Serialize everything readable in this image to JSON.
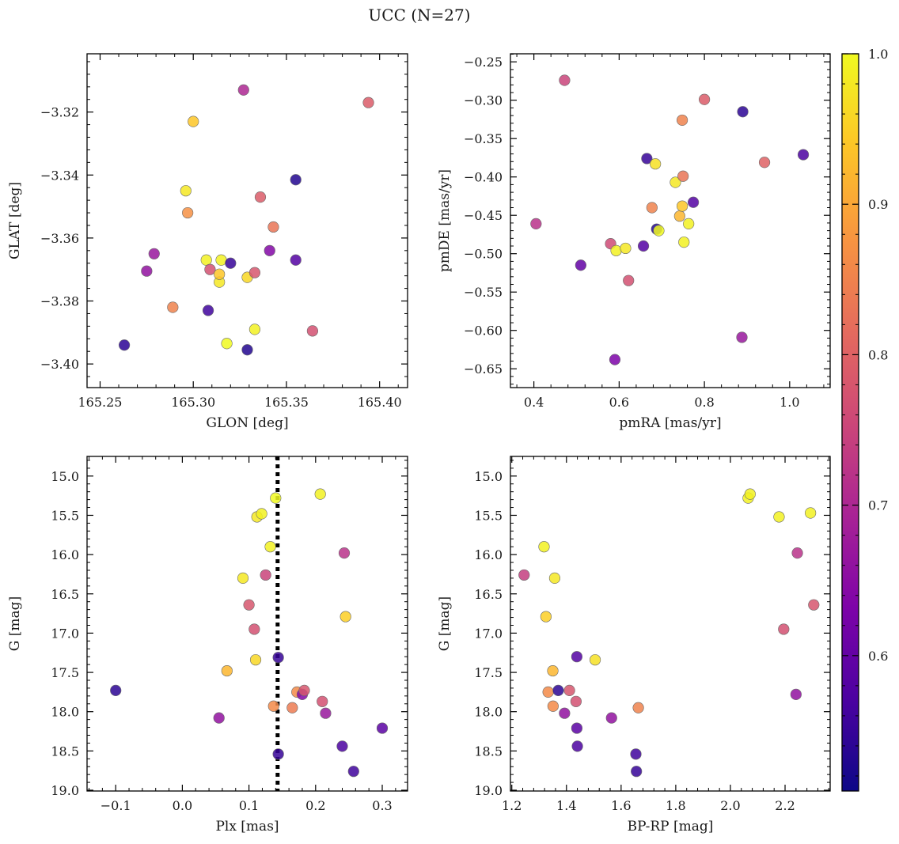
{
  "figure": {
    "title": "UCC (N=27)"
  },
  "colorbar": {
    "min": 0.51,
    "max": 1.0,
    "ticks": [
      0.6,
      0.7,
      0.8,
      0.9,
      1.0
    ],
    "tick_labels": [
      "0.6",
      "0.7",
      "0.8",
      "0.9",
      "1.0"
    ],
    "colormap": "plasma"
  },
  "chart_data": [
    {
      "type": "scatter",
      "xlabel": "GLON [deg]",
      "ylabel": "GLAT [deg]",
      "xlim": [
        165.243,
        165.415
      ],
      "ylim": [
        -3.4075,
        -3.3015
      ],
      "xticks": [
        165.25,
        165.3,
        165.35,
        165.4
      ],
      "xtick_labels": [
        "165.25",
        "165.30",
        "165.35",
        "165.40"
      ],
      "yticks": [
        -3.4,
        -3.38,
        -3.36,
        -3.34,
        -3.32
      ],
      "ytick_labels": [
        "−3.40",
        "−3.38",
        "−3.36",
        "−3.34",
        "−3.32"
      ],
      "points": [
        {
          "x": 165.263,
          "y": -3.394,
          "c": 0.54
        },
        {
          "x": 165.275,
          "y": -3.3705,
          "c": 0.66
        },
        {
          "x": 165.279,
          "y": -3.365,
          "c": 0.67
        },
        {
          "x": 165.289,
          "y": -3.382,
          "c": 0.85
        },
        {
          "x": 165.296,
          "y": -3.345,
          "c": 0.98
        },
        {
          "x": 165.297,
          "y": -3.352,
          "c": 0.87
        },
        {
          "x": 165.3,
          "y": -3.323,
          "c": 0.94
        },
        {
          "x": 165.307,
          "y": -3.367,
          "c": 0.99
        },
        {
          "x": 165.308,
          "y": -3.383,
          "c": 0.56
        },
        {
          "x": 165.309,
          "y": -3.37,
          "c": 0.77
        },
        {
          "x": 165.314,
          "y": -3.374,
          "c": 0.98
        },
        {
          "x": 165.314,
          "y": -3.3715,
          "c": 0.94
        },
        {
          "x": 165.315,
          "y": -3.367,
          "c": 0.99
        },
        {
          "x": 165.318,
          "y": -3.3935,
          "c": 1.0
        },
        {
          "x": 165.32,
          "y": -3.368,
          "c": 0.55
        },
        {
          "x": 165.327,
          "y": -3.313,
          "c": 0.7
        },
        {
          "x": 165.329,
          "y": -3.3955,
          "c": 0.53
        },
        {
          "x": 165.329,
          "y": -3.3725,
          "c": 0.96
        },
        {
          "x": 165.333,
          "y": -3.389,
          "c": 0.99
        },
        {
          "x": 165.333,
          "y": -3.371,
          "c": 0.78
        },
        {
          "x": 165.336,
          "y": -3.347,
          "c": 0.79
        },
        {
          "x": 165.341,
          "y": -3.364,
          "c": 0.64
        },
        {
          "x": 165.343,
          "y": -3.3565,
          "c": 0.83
        },
        {
          "x": 165.355,
          "y": -3.367,
          "c": 0.58
        },
        {
          "x": 165.355,
          "y": -3.3415,
          "c": 0.53
        },
        {
          "x": 165.364,
          "y": -3.3895,
          "c": 0.77
        },
        {
          "x": 165.394,
          "y": -3.317,
          "c": 0.79
        }
      ]
    },
    {
      "type": "scatter",
      "xlabel": "pmRA [mas/yr]",
      "ylabel": "pmDE [mas/yr]",
      "xlim": [
        0.345,
        1.095
      ],
      "ylim": [
        -0.6745,
        -0.2395
      ],
      "xticks": [
        0.4,
        0.6,
        0.8,
        1.0
      ],
      "xtick_labels": [
        "0.4",
        "0.6",
        "0.8",
        "1.0"
      ],
      "yticks": [
        -0.65,
        -0.6,
        -0.55,
        -0.5,
        -0.45,
        -0.4,
        -0.35,
        -0.3,
        -0.25
      ],
      "ytick_labels": [
        "−0.65",
        "−0.60",
        "−0.55",
        "−0.50",
        "−0.45",
        "−0.40",
        "−0.35",
        "−0.30",
        "−0.25"
      ],
      "points": [
        {
          "x": 0.405,
          "y": -0.461,
          "c": 0.72
        },
        {
          "x": 0.472,
          "y": -0.274,
          "c": 0.75
        },
        {
          "x": 0.51,
          "y": -0.515,
          "c": 0.6
        },
        {
          "x": 0.58,
          "y": -0.487,
          "c": 0.76
        },
        {
          "x": 0.59,
          "y": -0.638,
          "c": 0.63
        },
        {
          "x": 0.593,
          "y": -0.496,
          "c": 0.99
        },
        {
          "x": 0.615,
          "y": -0.493,
          "c": 0.98
        },
        {
          "x": 0.622,
          "y": -0.535,
          "c": 0.77
        },
        {
          "x": 0.657,
          "y": -0.49,
          "c": 0.58
        },
        {
          "x": 0.665,
          "y": -0.376,
          "c": 0.55
        },
        {
          "x": 0.677,
          "y": -0.44,
          "c": 0.85
        },
        {
          "x": 0.685,
          "y": -0.383,
          "c": 0.97
        },
        {
          "x": 0.688,
          "y": -0.468,
          "c": 0.53
        },
        {
          "x": 0.693,
          "y": -0.47,
          "c": 1.0
        },
        {
          "x": 0.732,
          "y": -0.407,
          "c": 0.98
        },
        {
          "x": 0.742,
          "y": -0.451,
          "c": 0.92
        },
        {
          "x": 0.748,
          "y": -0.438,
          "c": 0.94
        },
        {
          "x": 0.748,
          "y": -0.326,
          "c": 0.85
        },
        {
          "x": 0.75,
          "y": -0.399,
          "c": 0.83
        },
        {
          "x": 0.752,
          "y": -0.485,
          "c": 0.99
        },
        {
          "x": 0.763,
          "y": -0.461,
          "c": 0.99
        },
        {
          "x": 0.774,
          "y": -0.433,
          "c": 0.58
        },
        {
          "x": 0.8,
          "y": -0.299,
          "c": 0.79
        },
        {
          "x": 0.888,
          "y": -0.609,
          "c": 0.67
        },
        {
          "x": 0.89,
          "y": -0.315,
          "c": 0.54
        },
        {
          "x": 0.941,
          "y": -0.381,
          "c": 0.8
        },
        {
          "x": 1.032,
          "y": -0.371,
          "c": 0.57
        }
      ]
    },
    {
      "type": "scatter",
      "xlabel": "Plx [mas]",
      "ylabel": "G [mag]",
      "xlim": [
        -0.143,
        0.338
      ],
      "ylim": [
        19.01,
        14.75
      ],
      "y_inverted": true,
      "xticks": [
        -0.1,
        0.0,
        0.1,
        0.2,
        0.3
      ],
      "xtick_labels": [
        "−0.1",
        "0.0",
        "0.1",
        "0.2",
        "0.3"
      ],
      "yticks": [
        15.0,
        15.5,
        16.0,
        16.5,
        17.0,
        17.5,
        18.0,
        18.5,
        19.0
      ],
      "ytick_labels": [
        "15.0",
        "15.5",
        "16.0",
        "16.5",
        "17.0",
        "17.5",
        "18.0",
        "18.5",
        "19.0"
      ],
      "vline": {
        "x": 0.143,
        "style": "dotted"
      },
      "points": [
        {
          "x": -0.1,
          "y": 17.73,
          "c": 0.54
        },
        {
          "x": 0.055,
          "y": 18.08,
          "c": 0.66
        },
        {
          "x": 0.067,
          "y": 17.48,
          "c": 0.92
        },
        {
          "x": 0.091,
          "y": 16.3,
          "c": 0.98
        },
        {
          "x": 0.1,
          "y": 16.64,
          "c": 0.78
        },
        {
          "x": 0.108,
          "y": 16.95,
          "c": 0.77
        },
        {
          "x": 0.11,
          "y": 17.34,
          "c": 0.96
        },
        {
          "x": 0.112,
          "y": 15.52,
          "c": 0.98
        },
        {
          "x": 0.119,
          "y": 15.48,
          "c": 0.99
        },
        {
          "x": 0.125,
          "y": 16.26,
          "c": 0.75
        },
        {
          "x": 0.132,
          "y": 15.9,
          "c": 0.99
        },
        {
          "x": 0.137,
          "y": 17.93,
          "c": 0.86
        },
        {
          "x": 0.14,
          "y": 15.28,
          "c": 1.0
        },
        {
          "x": 0.144,
          "y": 17.31,
          "c": 0.55
        },
        {
          "x": 0.144,
          "y": 18.54,
          "c": 0.55
        },
        {
          "x": 0.165,
          "y": 17.95,
          "c": 0.84
        },
        {
          "x": 0.172,
          "y": 17.75,
          "c": 0.86
        },
        {
          "x": 0.18,
          "y": 17.78,
          "c": 0.64
        },
        {
          "x": 0.183,
          "y": 17.73,
          "c": 0.78
        },
        {
          "x": 0.207,
          "y": 15.23,
          "c": 0.99
        },
        {
          "x": 0.21,
          "y": 17.87,
          "c": 0.77
        },
        {
          "x": 0.215,
          "y": 18.02,
          "c": 0.67
        },
        {
          "x": 0.24,
          "y": 18.44,
          "c": 0.57
        },
        {
          "x": 0.243,
          "y": 15.98,
          "c": 0.72
        },
        {
          "x": 0.245,
          "y": 16.79,
          "c": 0.95
        },
        {
          "x": 0.257,
          "y": 18.76,
          "c": 0.56
        },
        {
          "x": 0.3,
          "y": 18.21,
          "c": 0.59
        }
      ]
    },
    {
      "type": "scatter",
      "xlabel": "BP-RP [mag]",
      "ylabel": "G [mag]",
      "xlim": [
        1.195,
        2.365
      ],
      "ylim": [
        19.01,
        14.75
      ],
      "y_inverted": true,
      "xticks": [
        1.2,
        1.4,
        1.6,
        1.8,
        2.0,
        2.2
      ],
      "xtick_labels": [
        "1.2",
        "1.4",
        "1.6",
        "1.8",
        "2.0",
        "2.2"
      ],
      "yticks": [
        15.0,
        15.5,
        16.0,
        16.5,
        17.0,
        17.5,
        18.0,
        18.5,
        19.0
      ],
      "ytick_labels": [
        "15.0",
        "15.5",
        "16.0",
        "16.5",
        "17.0",
        "17.5",
        "18.0",
        "18.5",
        "19.0"
      ],
      "points": [
        {
          "x": 1.245,
          "y": 16.26,
          "c": 0.74
        },
        {
          "x": 1.318,
          "y": 15.9,
          "c": 0.99
        },
        {
          "x": 1.325,
          "y": 16.79,
          "c": 0.95
        },
        {
          "x": 1.333,
          "y": 17.75,
          "c": 0.86
        },
        {
          "x": 1.35,
          "y": 17.48,
          "c": 0.92
        },
        {
          "x": 1.351,
          "y": 17.93,
          "c": 0.86
        },
        {
          "x": 1.357,
          "y": 16.3,
          "c": 0.98
        },
        {
          "x": 1.37,
          "y": 17.73,
          "c": 0.54
        },
        {
          "x": 1.393,
          "y": 18.02,
          "c": 0.66
        },
        {
          "x": 1.411,
          "y": 17.73,
          "c": 0.78
        },
        {
          "x": 1.435,
          "y": 17.87,
          "c": 0.77
        },
        {
          "x": 1.438,
          "y": 17.3,
          "c": 0.58
        },
        {
          "x": 1.438,
          "y": 18.21,
          "c": 0.59
        },
        {
          "x": 1.44,
          "y": 18.44,
          "c": 0.57
        },
        {
          "x": 1.505,
          "y": 17.34,
          "c": 0.97
        },
        {
          "x": 1.565,
          "y": 18.08,
          "c": 0.66
        },
        {
          "x": 1.654,
          "y": 18.54,
          "c": 0.56
        },
        {
          "x": 1.656,
          "y": 18.76,
          "c": 0.55
        },
        {
          "x": 1.663,
          "y": 17.95,
          "c": 0.85
        },
        {
          "x": 2.065,
          "y": 15.28,
          "c": 0.99
        },
        {
          "x": 2.072,
          "y": 15.23,
          "c": 0.99
        },
        {
          "x": 2.178,
          "y": 15.52,
          "c": 0.99
        },
        {
          "x": 2.195,
          "y": 16.95,
          "c": 0.77
        },
        {
          "x": 2.24,
          "y": 17.78,
          "c": 0.66
        },
        {
          "x": 2.245,
          "y": 15.98,
          "c": 0.72
        },
        {
          "x": 2.293,
          "y": 15.47,
          "c": 0.99
        },
        {
          "x": 2.305,
          "y": 16.64,
          "c": 0.78
        }
      ]
    }
  ]
}
